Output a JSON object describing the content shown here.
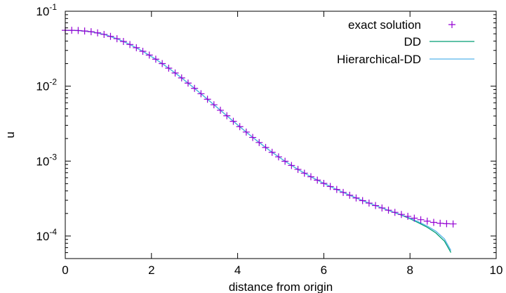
{
  "chart_data": {
    "type": "line",
    "title": "",
    "xlabel": "distance from origin",
    "ylabel": "u",
    "xlim": [
      0,
      10
    ],
    "ylim": [
      5e-05,
      0.1
    ],
    "yscale": "log",
    "grid": false,
    "legend_position": "top-right",
    "x_ticks": [
      {
        "value": 0,
        "label": "0"
      },
      {
        "value": 2,
        "label": "2"
      },
      {
        "value": 4,
        "label": "4"
      },
      {
        "value": 6,
        "label": "6"
      },
      {
        "value": 8,
        "label": "8"
      },
      {
        "value": 10,
        "label": "10"
      }
    ],
    "y_ticks": [
      {
        "value": 0.0001,
        "base": "10",
        "exp": "-4"
      },
      {
        "value": 0.001,
        "base": "10",
        "exp": "-3"
      },
      {
        "value": 0.01,
        "base": "10",
        "exp": "-2"
      },
      {
        "value": 0.1,
        "base": "10",
        "exp": "-1"
      }
    ],
    "series": [
      {
        "name": "exact solution",
        "style": "markers",
        "marker": "plus",
        "color": "#9400d3",
        "x": [
          0.0,
          0.15,
          0.3,
          0.45,
          0.6,
          0.75,
          0.9,
          1.05,
          1.2,
          1.35,
          1.5,
          1.65,
          1.8,
          1.95,
          2.1,
          2.25,
          2.4,
          2.55,
          2.7,
          2.85,
          3.0,
          3.15,
          3.3,
          3.45,
          3.6,
          3.75,
          3.9,
          4.05,
          4.2,
          4.35,
          4.5,
          4.65,
          4.8,
          4.95,
          5.1,
          5.25,
          5.4,
          5.55,
          5.7,
          5.85,
          6.0,
          6.15,
          6.3,
          6.45,
          6.6,
          6.75,
          6.9,
          7.05,
          7.2,
          7.35,
          7.5,
          7.65,
          7.8,
          7.95,
          8.1,
          8.25,
          8.4,
          8.55,
          8.7,
          8.85,
          9.0
        ],
        "y": [
          0.0557,
          0.0557,
          0.0553,
          0.0545,
          0.0533,
          0.0515,
          0.0491,
          0.0462,
          0.043,
          0.0395,
          0.036,
          0.0326,
          0.0292,
          0.026,
          0.0229,
          0.02,
          0.0174,
          0.015,
          0.0129,
          0.011,
          0.00935,
          0.00792,
          0.00669,
          0.00565,
          0.00477,
          0.00403,
          0.0034,
          0.00288,
          0.00244,
          0.00207,
          0.00177,
          0.00152,
          0.00131,
          0.00114,
          0.000995,
          0.000875,
          0.000775,
          0.00069,
          0.000618,
          0.000557,
          0.000504,
          0.000458,
          0.000418,
          0.000382,
          0.00035,
          0.000322,
          0.000297,
          0.000275,
          0.000255,
          0.000237,
          0.000221,
          0.000207,
          0.000194,
          0.000183,
          0.000173,
          0.000165,
          0.000158,
          0.000152,
          0.000148,
          0.000146,
          0.000145
        ]
      },
      {
        "name": "DD",
        "style": "line",
        "color": "#009e73",
        "x": [
          0.0,
          0.3,
          0.6,
          0.9,
          1.2,
          1.5,
          1.8,
          2.1,
          2.4,
          2.7,
          3.0,
          3.3,
          3.6,
          3.9,
          4.2,
          4.5,
          4.8,
          5.1,
          5.4,
          5.7,
          6.0,
          6.3,
          6.6,
          6.9,
          7.2,
          7.5,
          7.8,
          8.0,
          8.2,
          8.4,
          8.6,
          8.8,
          8.95
        ],
        "y": [
          0.0557,
          0.0553,
          0.0533,
          0.0491,
          0.043,
          0.036,
          0.0292,
          0.0229,
          0.0174,
          0.0129,
          0.00935,
          0.00669,
          0.00477,
          0.0034,
          0.00244,
          0.00177,
          0.00131,
          0.000995,
          0.000775,
          0.000618,
          0.000504,
          0.000418,
          0.00035,
          0.000297,
          0.000255,
          0.00022,
          0.00019,
          0.00017,
          0.00015,
          0.000131,
          0.00011,
          8.55e-05,
          6.02e-05
        ]
      },
      {
        "name": "Hierarchical-DD",
        "style": "line",
        "color": "#56b4e9",
        "x": [
          0.0,
          0.3,
          0.6,
          0.9,
          1.2,
          1.5,
          1.8,
          2.1,
          2.4,
          2.7,
          3.0,
          3.3,
          3.6,
          3.9,
          4.2,
          4.5,
          4.8,
          5.1,
          5.4,
          5.7,
          6.0,
          6.3,
          6.6,
          6.9,
          7.2,
          7.5,
          7.8,
          8.0,
          8.2,
          8.4,
          8.6,
          8.8,
          8.95
        ],
        "y": [
          0.0557,
          0.0553,
          0.0533,
          0.0491,
          0.043,
          0.036,
          0.0292,
          0.0229,
          0.0174,
          0.0129,
          0.00935,
          0.00669,
          0.00477,
          0.0034,
          0.00244,
          0.00177,
          0.00131,
          0.000995,
          0.000775,
          0.000618,
          0.000504,
          0.000418,
          0.00035,
          0.000297,
          0.000255,
          0.000221,
          0.000192,
          0.000173,
          0.000154,
          0.000136,
          0.000116,
          9.15e-05,
          6.4e-05
        ]
      }
    ]
  }
}
